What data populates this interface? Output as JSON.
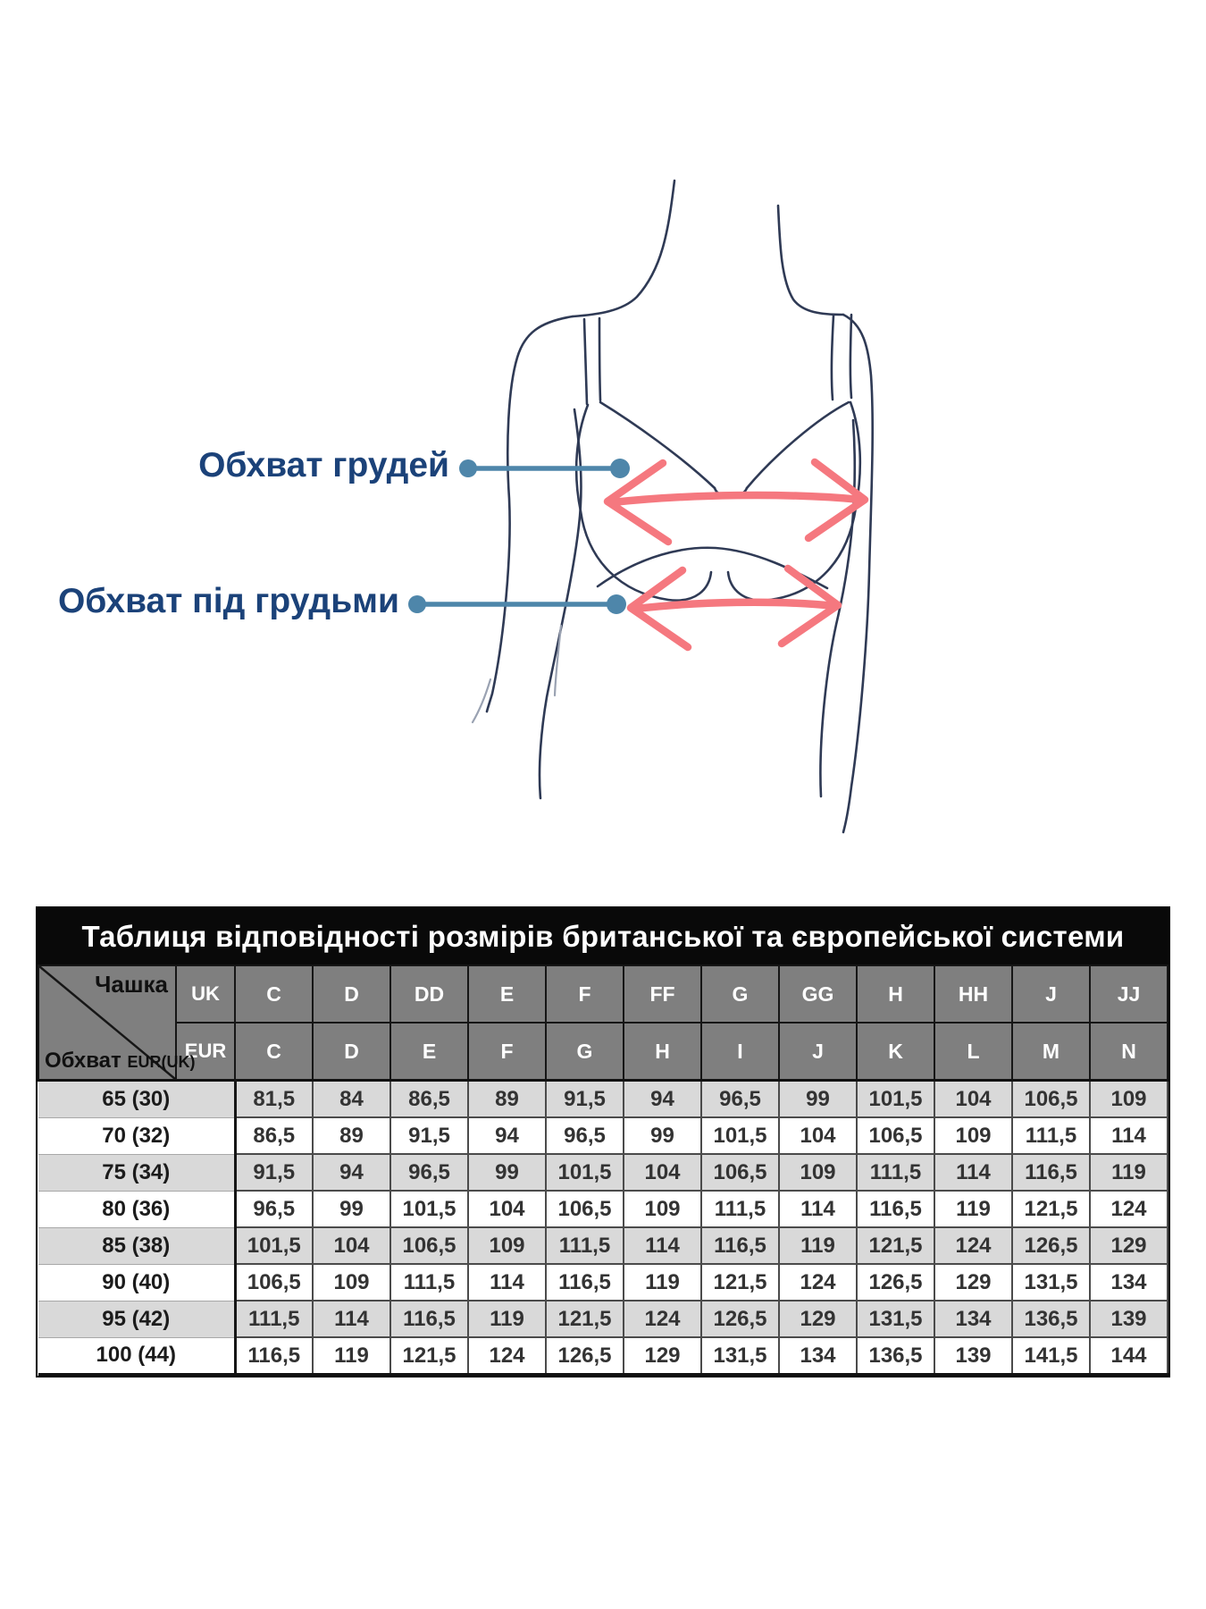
{
  "diagram": {
    "label_bust": "Обхват грудей",
    "label_underbust": "Обхват під грудьми"
  },
  "size_table": {
    "title": "Таблиця відповідності розмірів британської та європейської системи",
    "corner_top": "Чашка",
    "corner_bottom": "Обхват",
    "corner_bottom_small": "EUR(UK)",
    "system_row_top": "UK",
    "system_row_bottom": "EUR",
    "uk_cups": [
      "C",
      "D",
      "DD",
      "E",
      "F",
      "FF",
      "G",
      "GG",
      "H",
      "HH",
      "J",
      "JJ"
    ],
    "eur_cups": [
      "C",
      "D",
      "E",
      "F",
      "G",
      "H",
      "I",
      "J",
      "K",
      "L",
      "M",
      "N"
    ],
    "rows": [
      {
        "band": "65 (30)",
        "values": [
          "81,5",
          "84",
          "86,5",
          "89",
          "91,5",
          "94",
          "96,5",
          "99",
          "101,5",
          "104",
          "106,5",
          "109"
        ]
      },
      {
        "band": "70 (32)",
        "values": [
          "86,5",
          "89",
          "91,5",
          "94",
          "96,5",
          "99",
          "101,5",
          "104",
          "106,5",
          "109",
          "111,5",
          "114"
        ]
      },
      {
        "band": "75 (34)",
        "values": [
          "91,5",
          "94",
          "96,5",
          "99",
          "101,5",
          "104",
          "106,5",
          "109",
          "111,5",
          "114",
          "116,5",
          "119"
        ]
      },
      {
        "band": "80 (36)",
        "values": [
          "96,5",
          "99",
          "101,5",
          "104",
          "106,5",
          "109",
          "111,5",
          "114",
          "116,5",
          "119",
          "121,5",
          "124"
        ]
      },
      {
        "band": "85 (38)",
        "values": [
          "101,5",
          "104",
          "106,5",
          "109",
          "111,5",
          "114",
          "116,5",
          "119",
          "121,5",
          "124",
          "126,5",
          "129"
        ]
      },
      {
        "band": "90 (40)",
        "values": [
          "106,5",
          "109",
          "111,5",
          "114",
          "116,5",
          "119",
          "121,5",
          "124",
          "126,5",
          "129",
          "131,5",
          "134"
        ]
      },
      {
        "band": "95 (42)",
        "values": [
          "111,5",
          "114",
          "116,5",
          "119",
          "121,5",
          "124",
          "126,5",
          "129",
          "131,5",
          "134",
          "136,5",
          "139"
        ]
      },
      {
        "band": "100 (44)",
        "values": [
          "116,5",
          "119",
          "121,5",
          "124",
          "126,5",
          "129",
          "131,5",
          "134",
          "136,5",
          "139",
          "141,5",
          "144"
        ]
      }
    ]
  },
  "colors": {
    "label_text": "#1b4279",
    "callout_line": "#4e86aa",
    "measure_arrow": "#f5787f",
    "sketch_stroke": "#2f3a55",
    "title_bg": "#090909",
    "header_bg": "#7f7f7f",
    "row_alt_bg": "#d9d9d9"
  }
}
